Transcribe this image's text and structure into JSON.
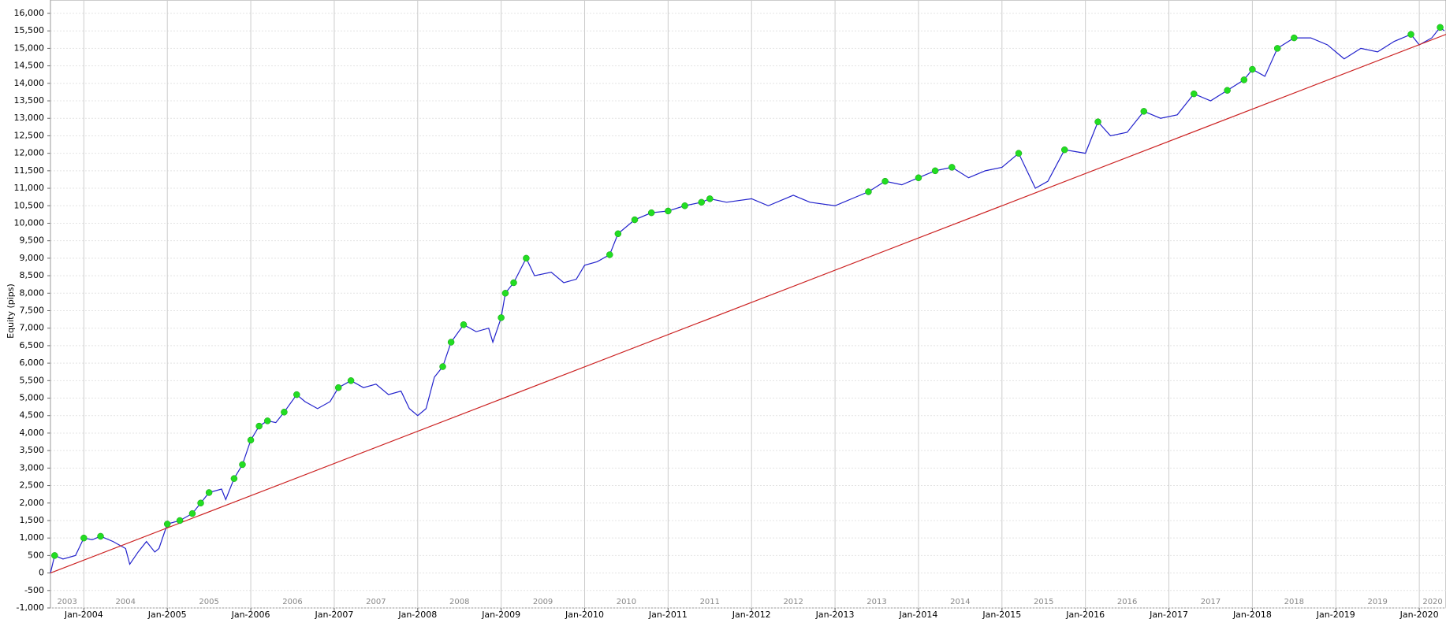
{
  "chart_data": {
    "type": "line",
    "y_label": "Equity (pips)",
    "xlim": [
      2003.6,
      2020.32
    ],
    "ylim": [
      -1000,
      16000
    ],
    "xticks": [
      {
        "value": 2004,
        "label": "Jan-2004"
      },
      {
        "value": 2005,
        "label": "Jan-2005"
      },
      {
        "value": 2006,
        "label": "Jan-2006"
      },
      {
        "value": 2007,
        "label": "Jan-2007"
      },
      {
        "value": 2008,
        "label": "Jan-2008"
      },
      {
        "value": 2009,
        "label": "Jan-2009"
      },
      {
        "value": 2010,
        "label": "Jan-2010"
      },
      {
        "value": 2011,
        "label": "Jan-2011"
      },
      {
        "value": 2012,
        "label": "Jan-2012"
      },
      {
        "value": 2013,
        "label": "Jan-2013"
      },
      {
        "value": 2014,
        "label": "Jan-2014"
      },
      {
        "value": 2015,
        "label": "Jan-2015"
      },
      {
        "value": 2016,
        "label": "Jan-2016"
      },
      {
        "value": 2017,
        "label": "Jan-2017"
      },
      {
        "value": 2018,
        "label": "Jan-2018"
      },
      {
        "value": 2019,
        "label": "Jan-2019"
      },
      {
        "value": 2020,
        "label": "Jan-2020"
      }
    ],
    "year_bands": [
      2003,
      2004,
      2005,
      2006,
      2007,
      2008,
      2009,
      2010,
      2011,
      2012,
      2013,
      2014,
      2015,
      2016,
      2017,
      2018,
      2019,
      2020
    ],
    "yticks": [
      {
        "value": -1000,
        "label": "-1,000"
      },
      -500,
      0,
      500,
      {
        "value": 1000,
        "label": "1,000"
      },
      {
        "value": 1500,
        "label": "1,500"
      },
      {
        "value": 2000,
        "label": "2,000"
      },
      {
        "value": 2500,
        "label": "2,500"
      },
      {
        "value": 3000,
        "label": "3,000"
      },
      {
        "value": 3500,
        "label": "3,500"
      },
      {
        "value": 4000,
        "label": "4,000"
      },
      {
        "value": 4500,
        "label": "4,500"
      },
      {
        "value": 5000,
        "label": "5,000"
      },
      {
        "value": 5500,
        "label": "5,500"
      },
      {
        "value": 6000,
        "label": "6,000"
      },
      {
        "value": 6500,
        "label": "6,500"
      },
      {
        "value": 7000,
        "label": "7,000"
      },
      {
        "value": 7500,
        "label": "7,500"
      },
      {
        "value": 8000,
        "label": "8,000"
      },
      {
        "value": 8500,
        "label": "8,500"
      },
      {
        "value": 9000,
        "label": "9,000"
      },
      {
        "value": 9500,
        "label": "9,500"
      },
      {
        "value": 10000,
        "label": "10,000"
      },
      {
        "value": 10500,
        "label": "10,500"
      },
      {
        "value": 11000,
        "label": "11,000"
      },
      {
        "value": 11500,
        "label": "11,500"
      },
      {
        "value": 12000,
        "label": "12,000"
      },
      {
        "value": 12500,
        "label": "12,500"
      },
      {
        "value": 13000,
        "label": "13,000"
      },
      {
        "value": 13500,
        "label": "13,500"
      },
      {
        "value": 14000,
        "label": "14,000"
      },
      {
        "value": 14500,
        "label": "14,500"
      },
      {
        "value": 15000,
        "label": "15,000"
      },
      {
        "value": 15500,
        "label": "15,500"
      },
      {
        "value": 16000,
        "label": "16,000"
      }
    ],
    "grid": true,
    "series": [
      {
        "kind": "line",
        "color": "#2222cc",
        "x": [
          2003.6,
          2003.65,
          2003.75,
          2003.9,
          2004.0,
          2004.1,
          2004.2,
          2004.35,
          2004.5,
          2004.55,
          2004.65,
          2004.75,
          2004.85,
          2004.9,
          2005.0,
          2005.15,
          2005.3,
          2005.4,
          2005.5,
          2005.65,
          2005.7,
          2005.8,
          2005.9,
          2006.0,
          2006.1,
          2006.2,
          2006.3,
          2006.4,
          2006.55,
          2006.65,
          2006.8,
          2006.95,
          2007.05,
          2007.2,
          2007.35,
          2007.5,
          2007.65,
          2007.8,
          2007.9,
          2008.0,
          2008.1,
          2008.2,
          2008.3,
          2008.4,
          2008.55,
          2008.7,
          2008.85,
          2008.9,
          2009.0,
          2009.05,
          2009.15,
          2009.3,
          2009.4,
          2009.6,
          2009.75,
          2009.9,
          2010.0,
          2010.15,
          2010.3,
          2010.4,
          2010.6,
          2010.8,
          2011.0,
          2011.2,
          2011.4,
          2011.5,
          2011.7,
          2012.0,
          2012.2,
          2012.5,
          2012.7,
          2013.0,
          2013.2,
          2013.4,
          2013.6,
          2013.8,
          2014.0,
          2014.2,
          2014.4,
          2014.6,
          2014.8,
          2015.0,
          2015.2,
          2015.3,
          2015.4,
          2015.55,
          2015.75,
          2016.0,
          2016.15,
          2016.3,
          2016.5,
          2016.7,
          2016.9,
          2017.1,
          2017.3,
          2017.5,
          2017.7,
          2017.9,
          2018.0,
          2018.15,
          2018.3,
          2018.5,
          2018.7,
          2018.9,
          2019.0,
          2019.1,
          2019.3,
          2019.5,
          2019.7,
          2019.9,
          2020.0,
          2020.15,
          2020.25,
          2020.3
        ],
        "values": [
          0,
          500,
          400,
          500,
          1000,
          950,
          1050,
          900,
          700,
          250,
          600,
          900,
          600,
          700,
          1400,
          1500,
          1700,
          2000,
          2300,
          2400,
          2100,
          2700,
          3100,
          3800,
          4200,
          4350,
          4300,
          4600,
          5100,
          4900,
          4700,
          4900,
          5300,
          5500,
          5300,
          5400,
          5100,
          5200,
          4700,
          4500,
          4700,
          5600,
          5900,
          6600,
          7100,
          6900,
          7000,
          6600,
          7300,
          8000,
          8300,
          9000,
          8500,
          8600,
          8300,
          8400,
          8800,
          8900,
          9100,
          9700,
          10100,
          10300,
          10350,
          10500,
          10600,
          10700,
          10600,
          10700,
          10500,
          10800,
          10600,
          10500,
          10700,
          10900,
          11200,
          11100,
          11300,
          11500,
          11600,
          11300,
          11500,
          11600,
          12000,
          11500,
          11000,
          11200,
          12100,
          12000,
          12900,
          12500,
          12600,
          13200,
          13000,
          13100,
          13700,
          13500,
          13800,
          14100,
          14400,
          14200,
          15000,
          15300,
          15300,
          15100,
          14900,
          14700,
          15000,
          14900,
          15200,
          15400,
          15100,
          15300,
          15600,
          15500
        ]
      },
      {
        "kind": "line",
        "color": "#cc2222",
        "x": [
          2003.6,
          2020.32
        ],
        "values": [
          0,
          15400
        ]
      },
      {
        "kind": "scatter",
        "color": "#22dd22",
        "x": [
          2003.65,
          2004.0,
          2004.2,
          2005.0,
          2005.15,
          2005.3,
          2005.4,
          2005.5,
          2005.8,
          2005.9,
          2006.0,
          2006.1,
          2006.2,
          2006.4,
          2006.55,
          2007.05,
          2007.2,
          2008.3,
          2008.4,
          2008.55,
          2009.0,
          2009.05,
          2009.15,
          2009.3,
          2010.3,
          2010.4,
          2010.6,
          2010.8,
          2011.0,
          2011.2,
          2011.4,
          2011.5,
          2013.4,
          2013.6,
          2014.0,
          2014.2,
          2014.4,
          2015.2,
          2015.75,
          2016.15,
          2016.7,
          2017.3,
          2017.7,
          2017.9,
          2018.0,
          2018.3,
          2018.5,
          2019.9,
          2020.25
        ],
        "values": [
          500,
          1000,
          1050,
          1400,
          1500,
          1700,
          2000,
          2300,
          2700,
          3100,
          3800,
          4200,
          4350,
          4600,
          5100,
          5300,
          5500,
          5900,
          6600,
          7100,
          7300,
          8000,
          8300,
          9000,
          9100,
          9700,
          10100,
          10300,
          10350,
          10500,
          10600,
          10700,
          10900,
          11200,
          11300,
          11500,
          11600,
          12000,
          12100,
          12900,
          13200,
          13700,
          13800,
          14100,
          14400,
          15000,
          15300,
          15400,
          15600
        ]
      }
    ]
  }
}
